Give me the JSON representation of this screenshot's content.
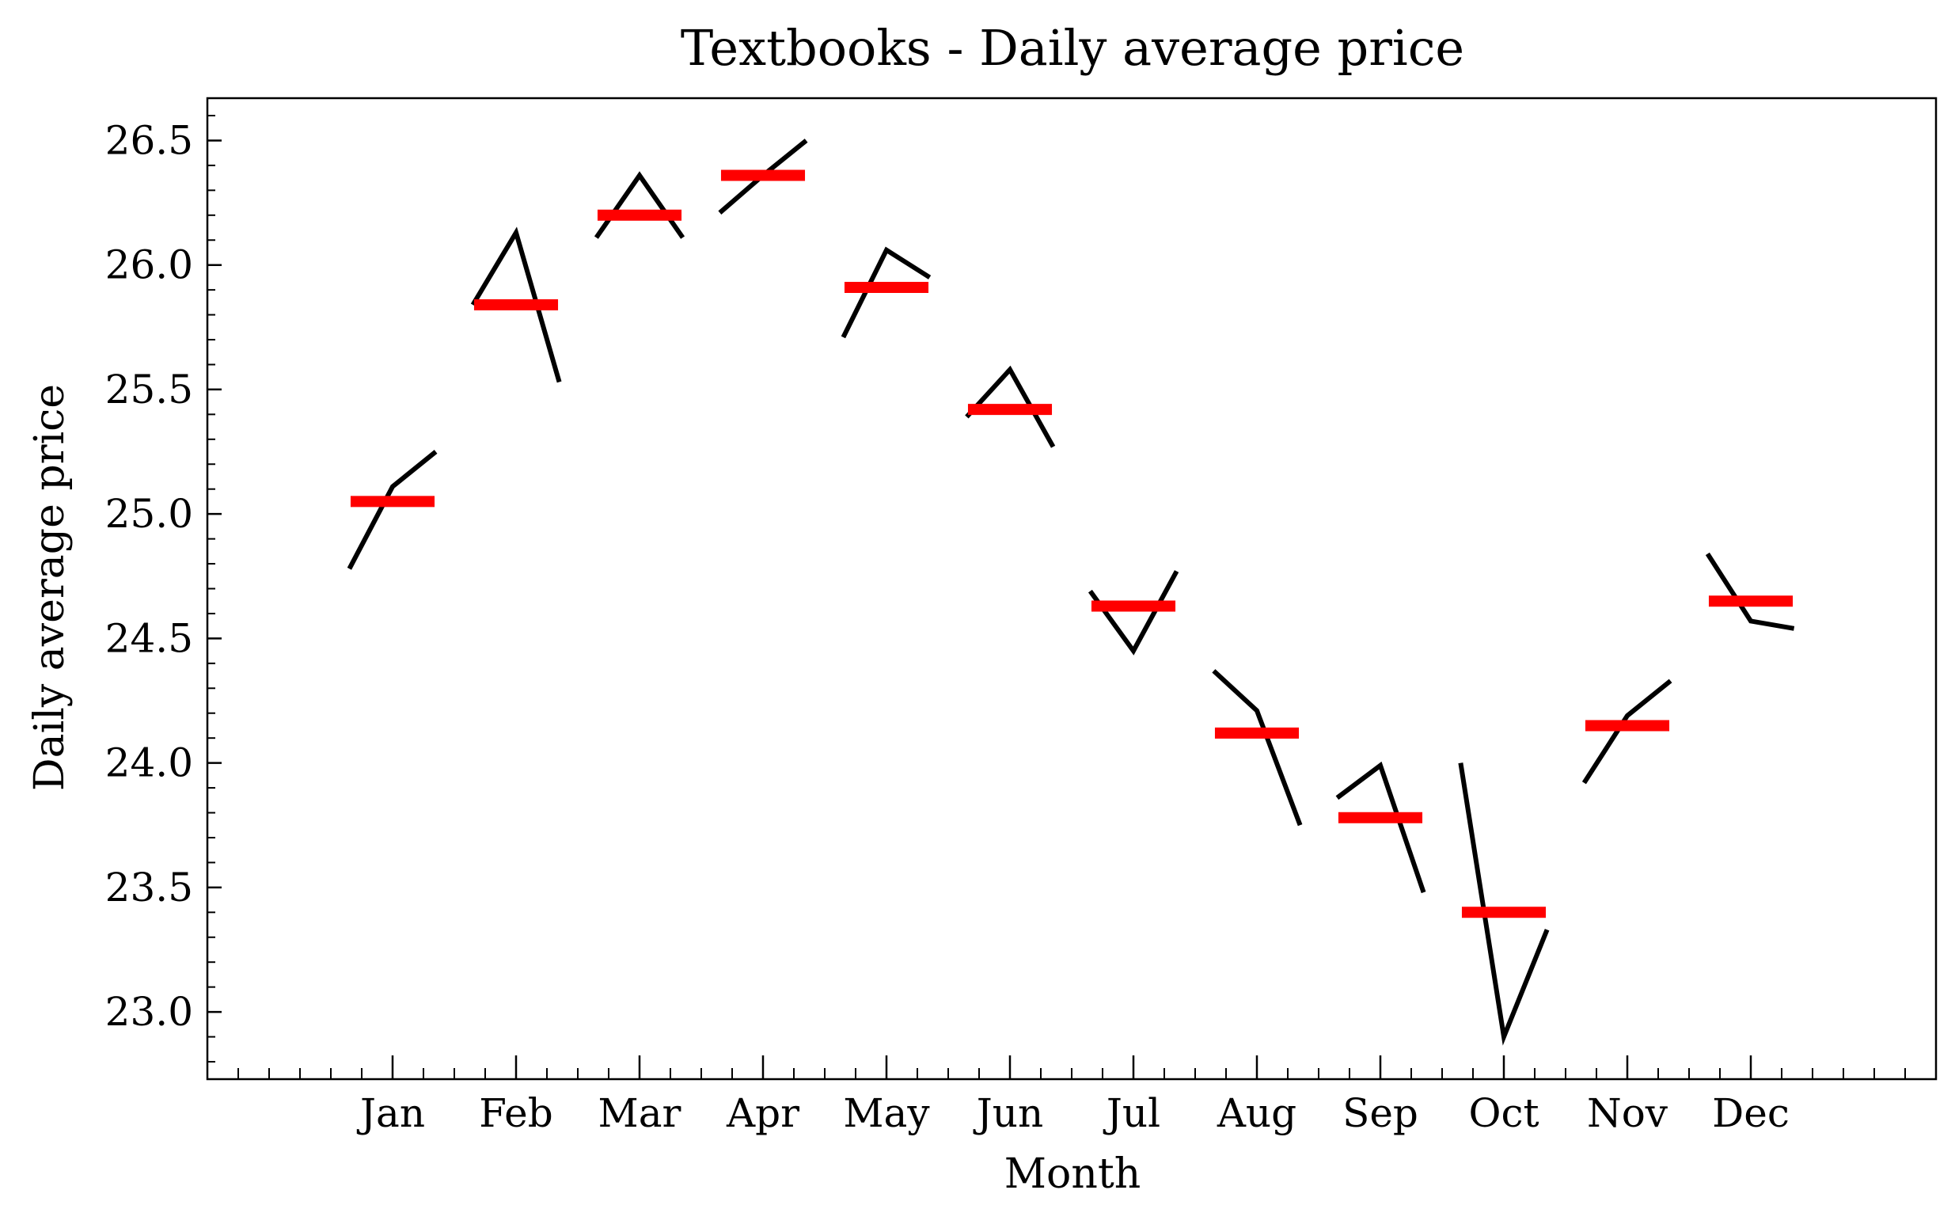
{
  "chart_data": {
    "type": "line",
    "title": "Textbooks - Daily average price",
    "xlabel": "Month",
    "ylabel": "Daily average price",
    "categories": [
      "Jan",
      "Feb",
      "Mar",
      "Apr",
      "May",
      "Jun",
      "Jul",
      "Aug",
      "Sep",
      "Oct",
      "Nov",
      "Dec"
    ],
    "ylim": [
      22.73,
      26.67
    ],
    "yticks": [
      23.0,
      23.5,
      24.0,
      24.5,
      25.0,
      25.5,
      26.0,
      26.5
    ],
    "ytick_labels": [
      "23.0",
      "23.5",
      "24.0",
      "24.5",
      "25.0",
      "25.5",
      "26.0",
      "26.5"
    ],
    "grid": false,
    "series": [
      {
        "kind": "monthly-subseries",
        "color": "#000000",
        "segments": [
          [
            24.78,
            25.11,
            25.25
          ],
          [
            25.84,
            26.13,
            25.53
          ],
          [
            26.11,
            26.36,
            26.11
          ],
          [
            26.21,
            26.36,
            26.5
          ],
          [
            25.71,
            26.06,
            25.95
          ],
          [
            25.39,
            25.58,
            25.27
          ],
          [
            24.69,
            24.45,
            24.77
          ],
          [
            24.37,
            24.21,
            23.75
          ],
          [
            23.86,
            23.99,
            23.48
          ],
          [
            24.0,
            22.9,
            23.33
          ],
          [
            23.92,
            24.19,
            24.33
          ],
          [
            24.84,
            24.57,
            24.54
          ]
        ]
      },
      {
        "kind": "monthly-mean",
        "color": "#ff0000",
        "values": [
          25.05,
          25.84,
          26.2,
          26.36,
          25.91,
          25.42,
          24.63,
          24.12,
          23.78,
          23.4,
          24.15,
          24.65
        ]
      }
    ]
  }
}
